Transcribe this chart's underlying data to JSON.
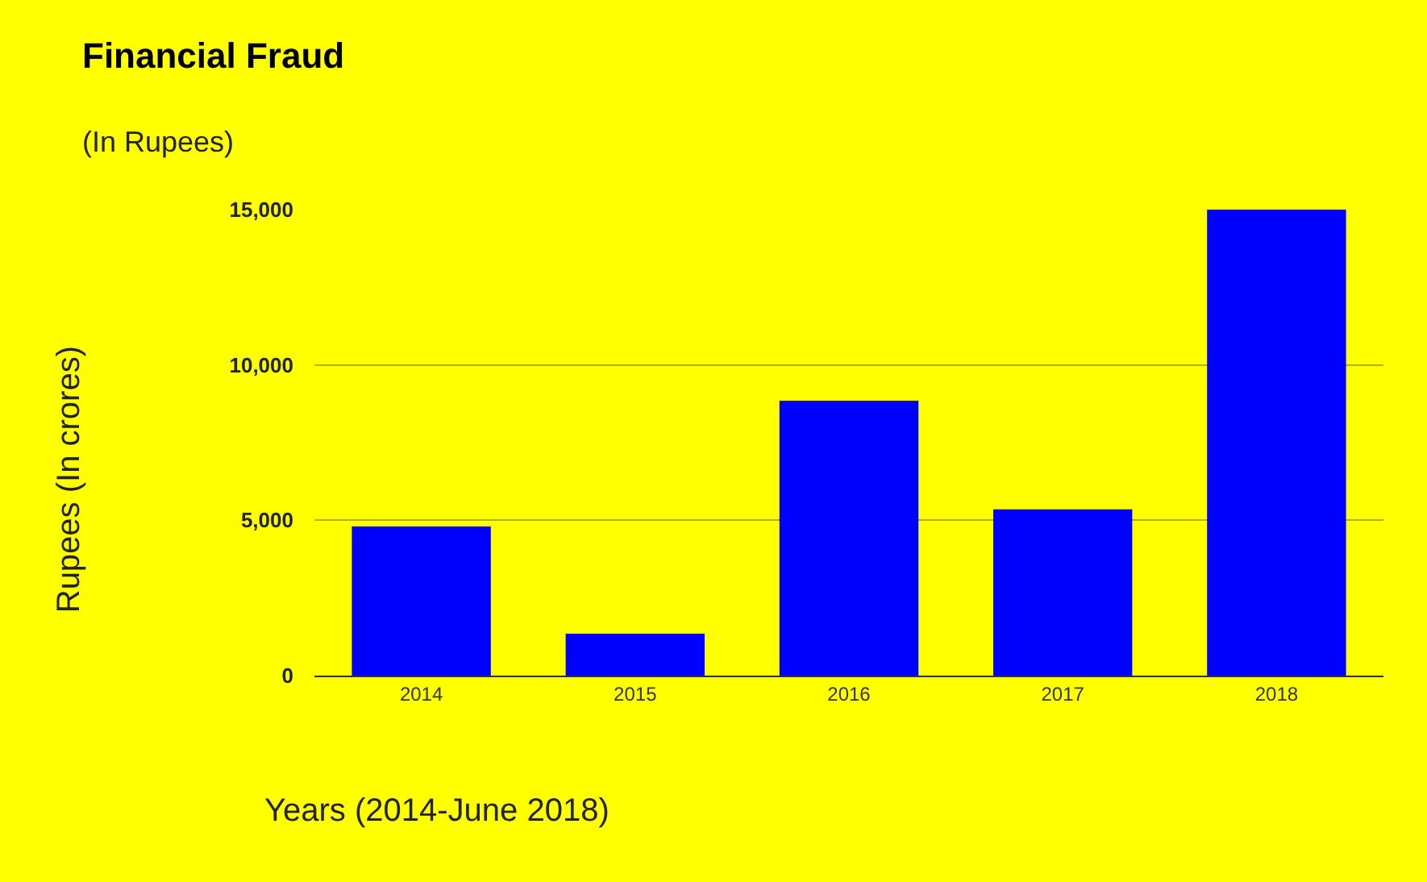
{
  "chart_data": {
    "type": "bar",
    "title": "Financial Fraud",
    "subtitle": "(In Rupees)",
    "xlabel": "Years (2014-June 2018)",
    "ylabel": "Rupees (In crores)",
    "categories": [
      "2014",
      "2015",
      "2016",
      "2017",
      "2018"
    ],
    "values": [
      4800,
      1350,
      8850,
      5350,
      15000
    ],
    "color": "#0000ff",
    "ylim": [
      0,
      15000
    ],
    "yticks": [
      0,
      {
        "value": 5000,
        "label": "5,000"
      },
      {
        "value": 10000,
        "label": "10,000"
      },
      {
        "value": 15000,
        "label": "15,000"
      }
    ],
    "grid": "y",
    "legend": false
  }
}
